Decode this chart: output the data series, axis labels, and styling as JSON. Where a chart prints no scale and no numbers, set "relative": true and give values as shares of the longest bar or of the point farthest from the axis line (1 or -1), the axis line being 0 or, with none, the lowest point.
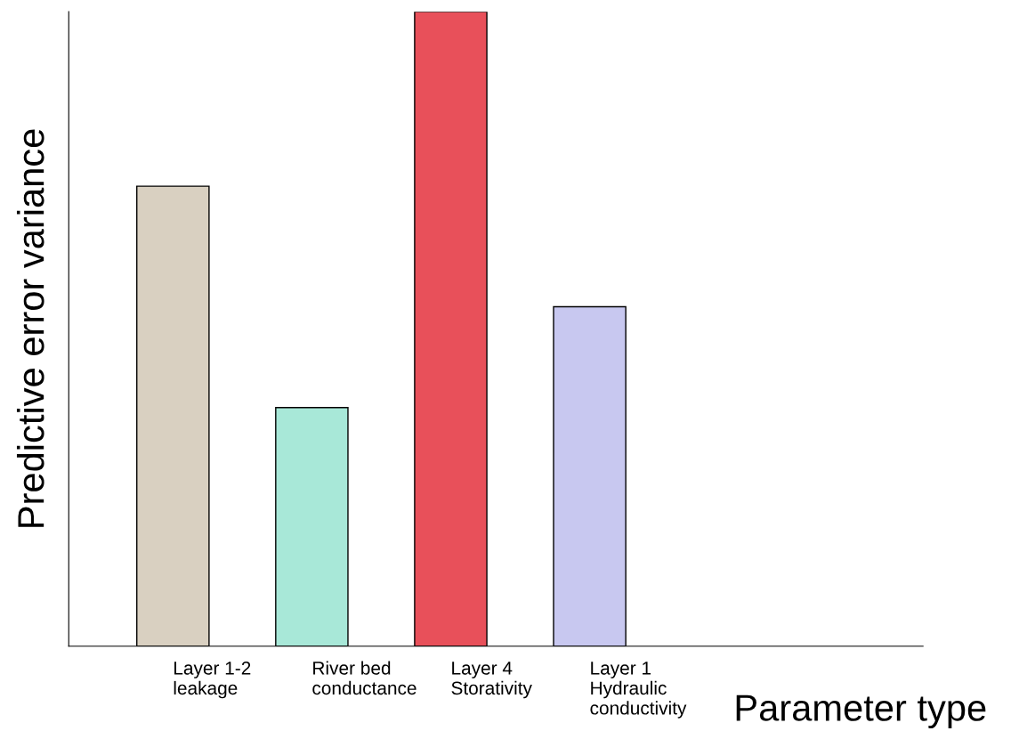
{
  "chart_data": {
    "type": "bar",
    "xlabel": "Parameter type",
    "ylabel": "Predictive error variance",
    "categories": [
      "Layer 1-2\nleakage",
      "River bed\nconductance",
      "Layer 4\nStorativity",
      "Layer 1\nHydraulic\nconductivity"
    ],
    "values": [
      0.725,
      0.376,
      1,
      0.535
    ],
    "colors": [
      "#d9d0c1",
      "#a8e8d8",
      "#e8505a",
      "#c8c8f0"
    ],
    "relative": true,
    "grid": false,
    "legend": false
  }
}
